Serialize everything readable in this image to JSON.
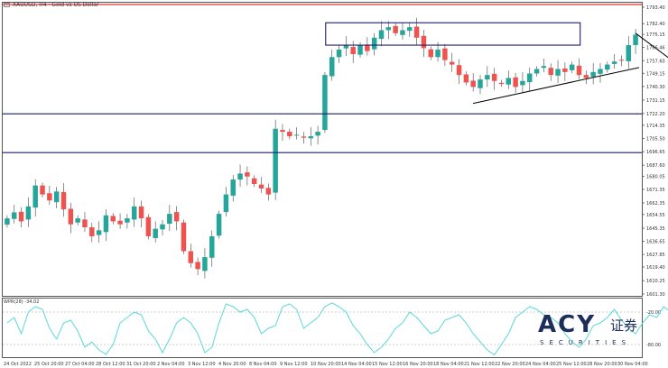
{
  "header": {
    "symbol": "XAUUSD, H4 · Gold vs US Dollar"
  },
  "indicator": {
    "label": "WPR(28) -34.02",
    "levels": [
      "-20.00",
      "-80.00"
    ]
  },
  "brand": {
    "main": "ACY",
    "cn": "证券",
    "sub": "SECURITIES"
  },
  "colors": {
    "bull": "#26a69a",
    "bear": "#ef5350",
    "zone": "#1c1c6e",
    "wpr": "#5ad8d8",
    "trend": "#000000",
    "topline": "#e03030"
  },
  "chart_data": [
    {
      "type": "candlestick",
      "price_axis_ticks": [
        "1793.40",
        "1782.40",
        "1775.15",
        "1766.46",
        "1757.60",
        "1749.15",
        "1740.30",
        "1731.15",
        "1722.20",
        "1714.35",
        "1705.50",
        "1696.65",
        "1687.60",
        "1680.05",
        "1671.35",
        "1662.35",
        "1654.55",
        "1645.35",
        "1636.65",
        "1627.85",
        "1619.40",
        "1610.25",
        "1601.30"
      ],
      "time_axis_labels": [
        "24 Oct 2022",
        "25 Oct 20:00",
        "27 Oct 04:00",
        "28 Oct 12:00",
        "31 Oct 20:00",
        "2 Nov 04:00",
        "3 Nov 12:00",
        "4 Nov 20:00",
        "8 Nov 04:00",
        "9 Nov 12:00",
        "10 Nov 20:00",
        "14 Nov 04:00",
        "15 Nov 12:00",
        "16 Nov 20:00",
        "18 Nov 04:00",
        "21 Nov 12:00",
        "22 Nov 20:00",
        "24 Nov 04:00",
        "25 Nov 12:00",
        "28 Nov 20:00",
        "30 Nov 04:00"
      ],
      "ylim": [
        1601.3,
        1793.4
      ],
      "close_path": [
        1652,
        1656,
        1650,
        1660,
        1674,
        1668,
        1664,
        1670,
        1658,
        1648,
        1652,
        1646,
        1640,
        1644,
        1654,
        1650,
        1648,
        1652,
        1660,
        1652,
        1640,
        1645,
        1648,
        1655,
        1650,
        1630,
        1622,
        1618,
        1626,
        1640,
        1655,
        1668,
        1678,
        1682,
        1680,
        1675,
        1672,
        1668,
        1712,
        1710,
        1707,
        1708,
        1706,
        1707,
        1710,
        1748,
        1760,
        1765,
        1768,
        1762,
        1768,
        1764,
        1773,
        1778,
        1780,
        1776,
        1778,
        1780,
        1773,
        1766,
        1760,
        1765,
        1758,
        1755,
        1748,
        1743,
        1740,
        1745,
        1748,
        1744,
        1742,
        1746,
        1740,
        1744,
        1749,
        1752,
        1754,
        1748,
        1752,
        1750,
        1755,
        1748,
        1746,
        1750,
        1752,
        1755,
        1757,
        1758,
        1768,
        1775
      ],
      "resistance_box": [
        1768,
        1783
      ],
      "support_band": [
        1696,
        1722
      ],
      "rising_trendline": {
        "start": {
          "index": 66,
          "price": 1729
        },
        "end": {
          "index": 96,
          "price": 1753
        }
      },
      "arrow_projection": {
        "from": {
          "index": 89,
          "price": 1776
        },
        "to": {
          "index": 96,
          "price": 1754
        }
      }
    },
    {
      "type": "line",
      "series": [
        {
          "name": "WPR(28)",
          "values": [
            -40,
            -30,
            -60,
            -20,
            -10,
            -15,
            -50,
            -70,
            -40,
            -35,
            -55,
            -85,
            -75,
            -90,
            -98,
            -80,
            -40,
            -30,
            -20,
            -25,
            -55,
            -70,
            -95,
            -70,
            -40,
            -30,
            -40,
            -60,
            -95,
            -85,
            -40,
            -5,
            -10,
            -20,
            -15,
            -30,
            -60,
            -50,
            -45,
            -10,
            -5,
            -15,
            -50,
            -40,
            -30,
            -10,
            -3,
            -10,
            -20,
            -45,
            -60,
            -80,
            -95,
            -85,
            -70,
            -50,
            -40,
            -20,
            -30,
            -45,
            -60,
            -55,
            -35,
            -30,
            -25,
            -40,
            -60,
            -75,
            -90,
            -99,
            -80,
            -60,
            -30,
            -20,
            -10,
            -15,
            -25,
            -30,
            -40,
            -60,
            -75,
            -85,
            -70,
            -45,
            -40,
            -30,
            -15,
            -35,
            -50,
            -60,
            -40,
            -25,
            -30,
            -10,
            -20,
            -5
          ]
        }
      ],
      "ylim": [
        -100,
        0
      ],
      "levels": [
        -20,
        -80
      ]
    }
  ]
}
